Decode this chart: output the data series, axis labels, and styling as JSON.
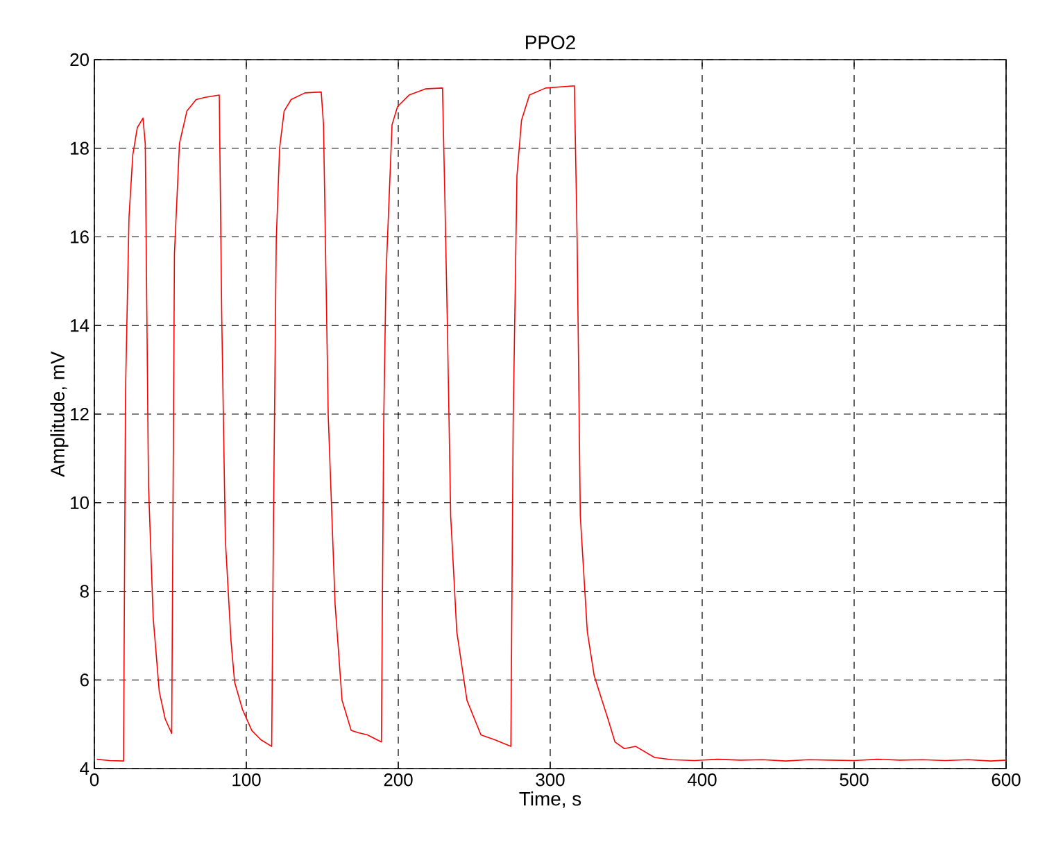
{
  "chart_data": {
    "type": "line",
    "title": "PPO2",
    "xlabel": "Time, s",
    "ylabel": "Amplitude, mV",
    "xlim": [
      0,
      600
    ],
    "ylim": [
      4,
      20
    ],
    "xticks": [
      0,
      100,
      200,
      300,
      400,
      500,
      600
    ],
    "yticks": [
      4,
      6,
      8,
      10,
      12,
      14,
      16,
      18,
      20
    ],
    "grid": true,
    "line_style": "solid",
    "series": [
      {
        "color": "#ff0000",
        "x": [
          1.6,
          10,
          19.2,
          20.5,
          22.8,
          25.3,
          28.3,
          32,
          33.5,
          35.6,
          38.7,
          42.7,
          46.6,
          50.9,
          52.7,
          56,
          60.9,
          67,
          73.1,
          82.2,
          83.8,
          86.2,
          89.9,
          92.3,
          97.5,
          103.6,
          109.6,
          116.7,
          117.9,
          119.7,
          121.9,
          124.9,
          129.5,
          138.6,
          149.3,
          150.8,
          153.9,
          158.4,
          163,
          169,
          173.6,
          179.7,
          188.9,
          190.4,
          191.9,
          195.9,
          199.5,
          207.1,
          217.8,
          229.1,
          230.6,
          232.4,
          234.5,
          238.5,
          245.2,
          254.4,
          263.5,
          274.1,
          275.6,
          278.1,
          281.1,
          286.3,
          297,
          315.9,
          317.7,
          319.8,
          324.4,
          328.9,
          333.5,
          338,
          342.6,
          348.7,
          356.3,
          368.6,
          380,
          395,
          410,
          425,
          440,
          455,
          470,
          485,
          500,
          515,
          530,
          545,
          560,
          575,
          590,
          600
        ],
        "values": [
          4.21,
          4.18,
          4.17,
          12.5,
          16.45,
          17.85,
          18.47,
          18.68,
          18.1,
          10.42,
          7.41,
          5.74,
          5.12,
          4.79,
          15.62,
          18.11,
          18.84,
          19.1,
          19.15,
          19.2,
          14.26,
          9.17,
          6.89,
          5.95,
          5.33,
          4.86,
          4.65,
          4.5,
          9.69,
          15.93,
          18.0,
          18.84,
          19.1,
          19.25,
          19.27,
          18.53,
          11.98,
          7.72,
          5.54,
          4.86,
          4.81,
          4.76,
          4.6,
          11.77,
          15.1,
          18.53,
          18.94,
          19.2,
          19.34,
          19.36,
          16.97,
          13.85,
          9.69,
          7.09,
          5.54,
          4.76,
          4.65,
          4.5,
          11.77,
          17.38,
          18.63,
          19.2,
          19.36,
          19.41,
          15.93,
          9.69,
          7.09,
          6.1,
          5.6,
          5.12,
          4.6,
          4.45,
          4.5,
          4.25,
          4.2,
          4.18,
          4.21,
          4.19,
          4.2,
          4.17,
          4.2,
          4.19,
          4.18,
          4.21,
          4.19,
          4.2,
          4.18,
          4.2,
          4.17,
          4.19
        ]
      }
    ]
  }
}
